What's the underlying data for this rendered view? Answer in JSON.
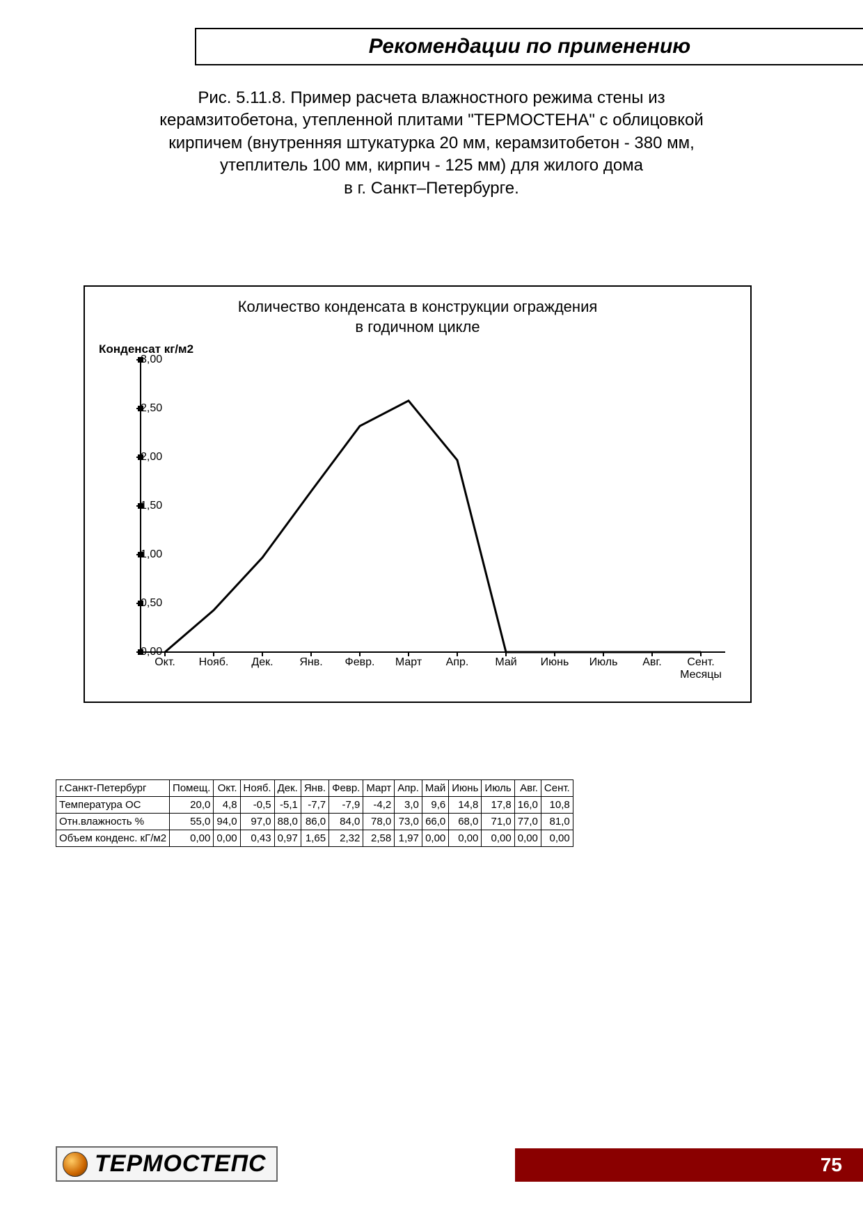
{
  "header": {
    "title": "Рекомендации по применению"
  },
  "caption": {
    "line1": "Рис. 5.11.8. Пример расчета влажностного режима стены из",
    "line2": "керамзитобетона, утепленной плитами \"ТЕРМОСТЕНА\" с облицовкой",
    "line3": "кирпичем (внутренняя штукатурка 20 мм, керамзитобетон - 380 мм,",
    "line4": "утеплитель 100 мм, кирпич - 125 мм) для жилого дома",
    "line5": "в г. Санкт–Петербурге."
  },
  "chart": {
    "type": "line",
    "title_line1": "Количество конденсата в конструкции ограждения",
    "title_line2": "в годичном цикле",
    "y_axis_label": "Конденсат кг/м2",
    "x_axis_end_label_line1": "Сент.",
    "x_axis_end_label_line2": "Месяцы",
    "ylim": [
      0,
      3.0
    ],
    "y_ticks": [
      0.0,
      0.5,
      1.0,
      1.5,
      2.0,
      2.5,
      3.0
    ],
    "y_tick_labels": [
      "0,00",
      "0,50",
      "1,00",
      "1,50",
      "2,00",
      "2,50",
      "3,00"
    ],
    "x_categories": [
      "Окт.",
      "Нояб.",
      "Дек.",
      "Янв.",
      "Февр.",
      "Март",
      "Апр.",
      "Май",
      "Июнь",
      "Июль",
      "Авг.",
      "Сент."
    ],
    "values": [
      0.0,
      0.43,
      0.97,
      1.65,
      2.32,
      2.58,
      1.97,
      0.0,
      0.0,
      0.0,
      0.0,
      0.0
    ],
    "line_color": "#000000",
    "line_width": 3,
    "tick_color": "#000000",
    "axis_color": "#000000",
    "background_color": "#ffffff",
    "title_fontsize": 22,
    "label_fontsize": 16,
    "y_label_fontsize": 17
  },
  "table": {
    "header_row": [
      "г.Санкт-Петербург",
      "Помещ.",
      "Окт.",
      "Нояб.",
      "Дек.",
      "Янв.",
      "Февр.",
      "Март",
      "Апр.",
      "Май",
      "Июнь",
      "Июль",
      "Авг.",
      "Сент."
    ],
    "rows": [
      [
        "Температура ОС",
        "20,0",
        "4,8",
        "-0,5",
        "-5,1",
        "-7,7",
        "-7,9",
        "-4,2",
        "3,0",
        "9,6",
        "14,8",
        "17,8",
        "16,0",
        "10,8"
      ],
      [
        "Отн.влажность %",
        "55,0",
        "94,0",
        "97,0",
        "88,0",
        "86,0",
        "84,0",
        "78,0",
        "73,0",
        "66,0",
        "68,0",
        "71,0",
        "77,0",
        "81,0"
      ],
      [
        "Объем конденс. кГ/м2",
        "0,00",
        "0,00",
        "0,43",
        "0,97",
        "1,65",
        "2,32",
        "2,58",
        "1,97",
        "0,00",
        "0,00",
        "0,00",
        "0,00",
        "0,00"
      ]
    ]
  },
  "footer": {
    "logo_text": "ТЕРМОСТЕПС",
    "page_number": "75",
    "bar_color": "#8a0000"
  }
}
